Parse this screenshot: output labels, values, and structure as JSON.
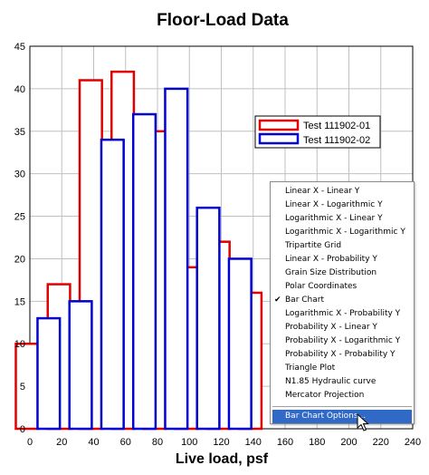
{
  "chart_data": {
    "type": "bar",
    "title": "Floor-Load Data",
    "xlabel": "Live load, psf",
    "ylabel": "",
    "xlim": [
      0,
      240
    ],
    "ylim": [
      0,
      45
    ],
    "x_ticks": [
      0,
      20,
      40,
      60,
      80,
      100,
      120,
      140,
      160,
      180,
      200,
      220,
      240
    ],
    "y_ticks": [
      0,
      5,
      10,
      15,
      20,
      25,
      30,
      35,
      40,
      45
    ],
    "grid": true,
    "legend_position": "upper-right",
    "x": [
      5,
      25,
      45,
      65,
      85,
      105,
      125,
      145,
      165,
      185,
      205,
      225
    ],
    "series": [
      {
        "name": "Test 111902-01",
        "color": "#e00000",
        "values": [
          10,
          17,
          41,
          42,
          35,
          19,
          22,
          16,
          null,
          null,
          null,
          null
        ]
      },
      {
        "name": "Test 111902-02",
        "color": "#0000d0",
        "values": [
          13,
          15,
          34,
          37,
          40,
          26,
          20,
          null,
          null,
          null,
          null,
          null
        ]
      }
    ]
  },
  "context_menu": {
    "items": [
      {
        "label": "Linear X - Linear Y",
        "checked": false
      },
      {
        "label": "Linear X - Logarithmic Y",
        "checked": false
      },
      {
        "label": "Logarithmic X - Linear Y",
        "checked": false
      },
      {
        "label": "Logarithmic X - Logarithmic Y",
        "checked": false
      },
      {
        "label": "Tripartite Grid",
        "checked": false
      },
      {
        "label": "Linear X - Probability Y",
        "checked": false
      },
      {
        "label": "Grain Size Distribution",
        "checked": false
      },
      {
        "label": "Polar Coordinates",
        "checked": false
      },
      {
        "label": "Bar Chart",
        "checked": true
      },
      {
        "label": "Logarithmic X - Probability Y",
        "checked": false
      },
      {
        "label": "Probability X - Linear Y",
        "checked": false
      },
      {
        "label": "Probability X - Logarithmic Y",
        "checked": false
      },
      {
        "label": "Probability X - Probability Y",
        "checked": false
      },
      {
        "label": "Triangle Plot",
        "checked": false
      },
      {
        "label": "N1.85 Hydraulic curve",
        "checked": false
      },
      {
        "label": "Mercator Projection",
        "checked": false
      }
    ],
    "options_label": "Bar Chart Options...",
    "check_glyph": "✔",
    "highlight_color": "#3169c6"
  },
  "cursor_icon": "arrow-cursor-icon"
}
